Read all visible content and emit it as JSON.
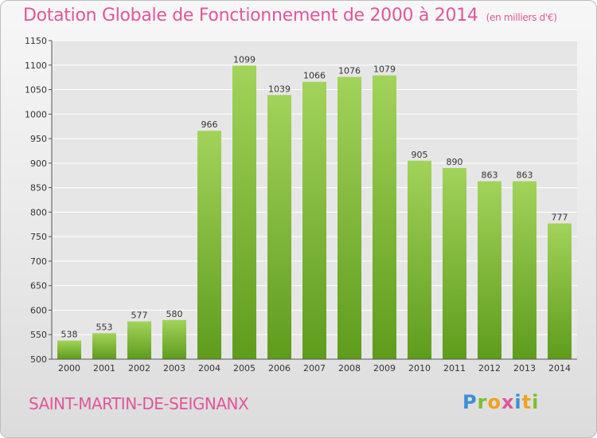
{
  "title": "Dotation Globale de Fonctionnement de 2000 à 2014",
  "unit_note": "(en milliers d'€)",
  "commune": "SAINT-MARTIN-DE-SEIGNANX",
  "logo": {
    "letters": [
      "P",
      "r",
      "o",
      "x",
      "i",
      "t",
      "i"
    ],
    "colors": [
      "#3b8fd6",
      "#7cbf2f",
      "#f0a21a",
      "#e0569b",
      "#3b8fd6",
      "#f0a21a",
      "#7cbf2f"
    ]
  },
  "colors": {
    "bar_top": "#a2d35a",
    "bar_bottom": "#5e9c1c",
    "title": "#e0569b",
    "grid": "#ffffff"
  },
  "chart_data": {
    "type": "bar",
    "title": "Dotation Globale de Fonctionnement de 2000 à 2014",
    "subtitle": "(en milliers d'€)",
    "categories": [
      "2000",
      "2001",
      "2002",
      "2003",
      "2004",
      "2005",
      "2006",
      "2007",
      "2008",
      "2009",
      "2010",
      "2011",
      "2012",
      "2013",
      "2014"
    ],
    "values": [
      538,
      553,
      577,
      580,
      966,
      1099,
      1039,
      1066,
      1076,
      1079,
      905,
      890,
      863,
      863,
      777
    ],
    "ylim": [
      500,
      1150
    ],
    "yticks": [
      500,
      550,
      600,
      650,
      700,
      750,
      800,
      850,
      900,
      950,
      1000,
      1050,
      1100,
      1150
    ],
    "grid": true,
    "data_labels": true
  }
}
